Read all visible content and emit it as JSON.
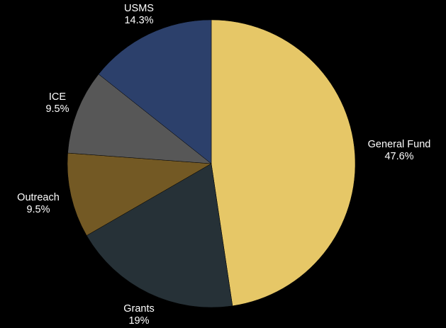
{
  "chart_data": {
    "type": "pie",
    "slices": [
      {
        "label": "General Fund",
        "value": 47.6,
        "value_label": "47.6%",
        "color": "#e6c767"
      },
      {
        "label": "Grants",
        "value": 19,
        "value_label": "19%",
        "color": "#263137"
      },
      {
        "label": "Outreach",
        "value": 9.5,
        "value_label": "9.5%",
        "color": "#735924"
      },
      {
        "label": "ICE",
        "value": 9.5,
        "value_label": "9.5%",
        "color": "#575757"
      },
      {
        "label": "USMS",
        "value": 14.3,
        "value_label": "14.3%",
        "color": "#2c406b"
      }
    ],
    "start": "12 o'clock",
    "direction": "clockwise",
    "legend": "none",
    "labels_position": "outside"
  },
  "background_color": "#000000"
}
